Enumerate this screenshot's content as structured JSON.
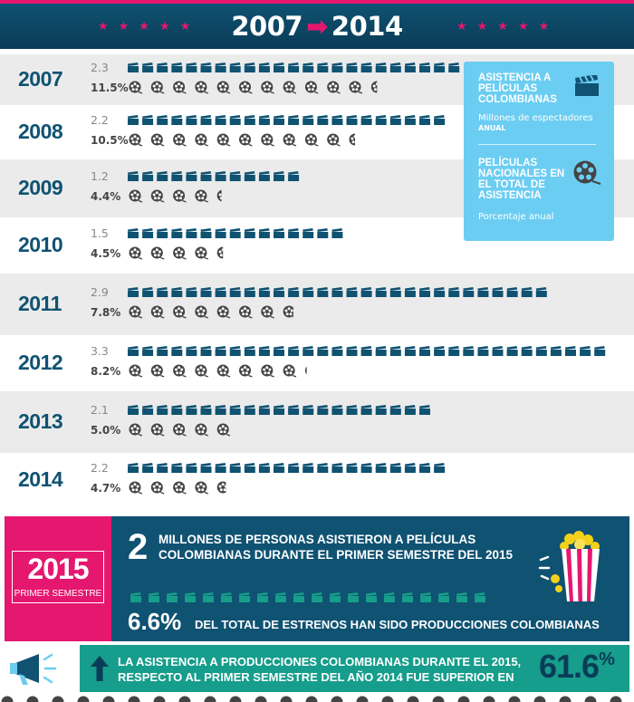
{
  "header": {
    "year_start": "2007",
    "year_end": "2014",
    "accent": "#e6176f",
    "bg": "#0f5272"
  },
  "legend": {
    "series1_title": "ASISTENCIA A PELÍCULAS COLOMBIANAS",
    "series1_sub": "Millones de espectadores",
    "series1_sub2": "ANUAL",
    "series1_icon": "clapperboard-icon",
    "series2_title": "PELÍCULAS NACIONALES EN EL TOTAL DE ASISTENCIA",
    "series2_sub": "Porcentaje anual",
    "series2_icon": "film-reel-icon"
  },
  "chart_data": {
    "type": "bar",
    "categories": [
      "2007",
      "2008",
      "2009",
      "2010",
      "2011",
      "2012",
      "2013",
      "2014"
    ],
    "series": [
      {
        "name": "ASISTENCIA A PELÍCULAS COLOMBIANAS",
        "unit": "Millones de espectadores",
        "values": [
          2.3,
          2.2,
          1.2,
          1.5,
          2.9,
          3.3,
          2.1,
          2.2
        ],
        "labels": [
          "2.3",
          "2.2",
          "1.2",
          "1.5",
          "2.9",
          "3.3",
          "2.1",
          "2.2"
        ]
      },
      {
        "name": "PELÍCULAS NACIONALES EN EL TOTAL DE ASISTENCIA",
        "unit": "Porcentaje anual",
        "values": [
          11.5,
          10.5,
          4.4,
          4.5,
          7.8,
          8.2,
          5.0,
          4.7
        ],
        "labels": [
          "11.5%",
          "10.5%",
          "4.4%",
          "4.5%",
          "7.8%",
          "8.2%",
          "5.0%",
          "4.7%"
        ]
      }
    ]
  },
  "promo": {
    "year": "2015",
    "semester": "PRIMER SEMESTRE",
    "big_number": "2",
    "line1": "MILLONES DE PERSONAS ASISTIERON A PELÍCULAS",
    "line2": "COLOMBIANAS DURANTE EL PRIMER SEMESTRE DEL 2015",
    "people_value": 2,
    "pct": "6.6%",
    "pct_text": "DEL TOTAL DE ESTRENOS HAN SIDO PRODUCCIONES COLOMBIANAS"
  },
  "bottom": {
    "line1": "LA ASISTENCIA A PRODUCCIONES COLOMBIANAS DURANTE EL 2015,",
    "line2": "RESPECTO AL PRIMER SEMESTRE DEL AÑO 2014 FUE SUPERIOR EN",
    "value": "61.6",
    "unit": "%",
    "megaphone_icon": "megaphone-icon",
    "arrow_icon": "up-arrow-icon",
    "accent": "#169d8b"
  }
}
